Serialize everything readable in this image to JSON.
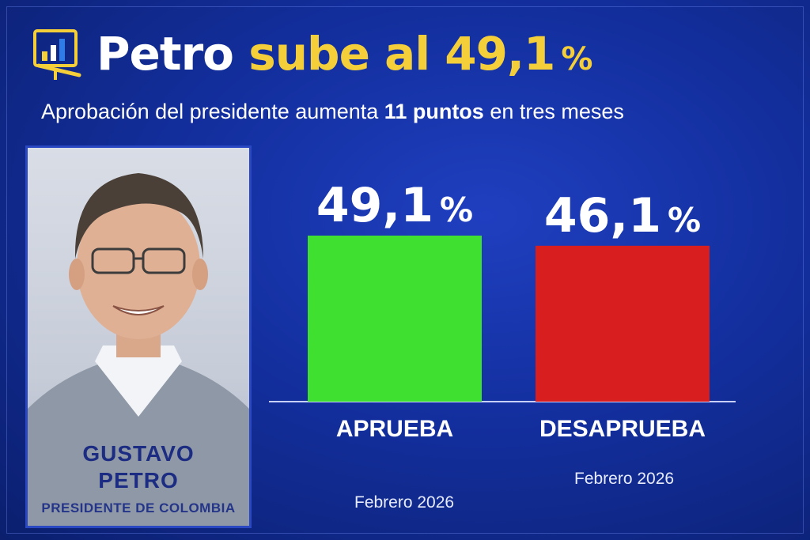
{
  "header": {
    "title_part1": "Petro",
    "title_part2": "sube al 49,1",
    "title_pct": "%",
    "icon": "bar-chart-icon"
  },
  "subtitle": {
    "part1": "Aprobación del presidente aumenta ",
    "part2": "11 puntos",
    "part3": " en tres meses"
  },
  "portrait": {
    "name_line1": "GUSTAVO",
    "name_line2": "PETRO",
    "role": "PRESIDENTE DE COLOMBIA"
  },
  "colors": {
    "approve": "#3fe02f",
    "disapprove": "#d81e1e",
    "title_accent": "#f4cf3a",
    "background": "#132f9e"
  },
  "chart_data": {
    "type": "bar",
    "categories": [
      "APRUEBA",
      "DESAPRUEBA"
    ],
    "values": [
      49.1,
      46.1
    ],
    "value_labels": [
      "49,1",
      "46,1"
    ],
    "unit": "%",
    "dates": [
      "Febrero 2026",
      "Febrero 2026"
    ],
    "title": "",
    "xlabel": "",
    "ylabel": ""
  }
}
